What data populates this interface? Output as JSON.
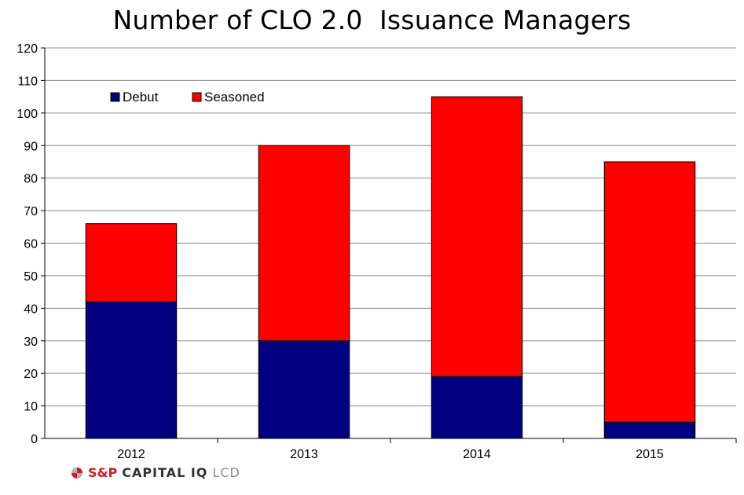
{
  "chart_data": {
    "type": "bar",
    "stacked": true,
    "title": "Number of CLO 2.0  Issuance Managers",
    "xlabel": "",
    "ylabel": "",
    "categories": [
      "2012",
      "2013",
      "2014",
      "2015"
    ],
    "series": [
      {
        "name": "Debut",
        "color": "#000080",
        "values": [
          42,
          30,
          19,
          5
        ]
      },
      {
        "name": "Seasoned",
        "color": "#ff0000",
        "values": [
          24,
          60,
          86,
          80
        ]
      }
    ],
    "ylim": [
      0,
      120
    ],
    "yticks": [
      "0",
      "10",
      "20",
      "30",
      "40",
      "50",
      "60",
      "70",
      "80",
      "90",
      "100",
      "110",
      "120"
    ],
    "grid": true,
    "legend": "top-left"
  },
  "footer": {
    "logo_sp": "S&P",
    "logo_capital": "CAPITAL IQ",
    "logo_lcd": "LCD"
  }
}
